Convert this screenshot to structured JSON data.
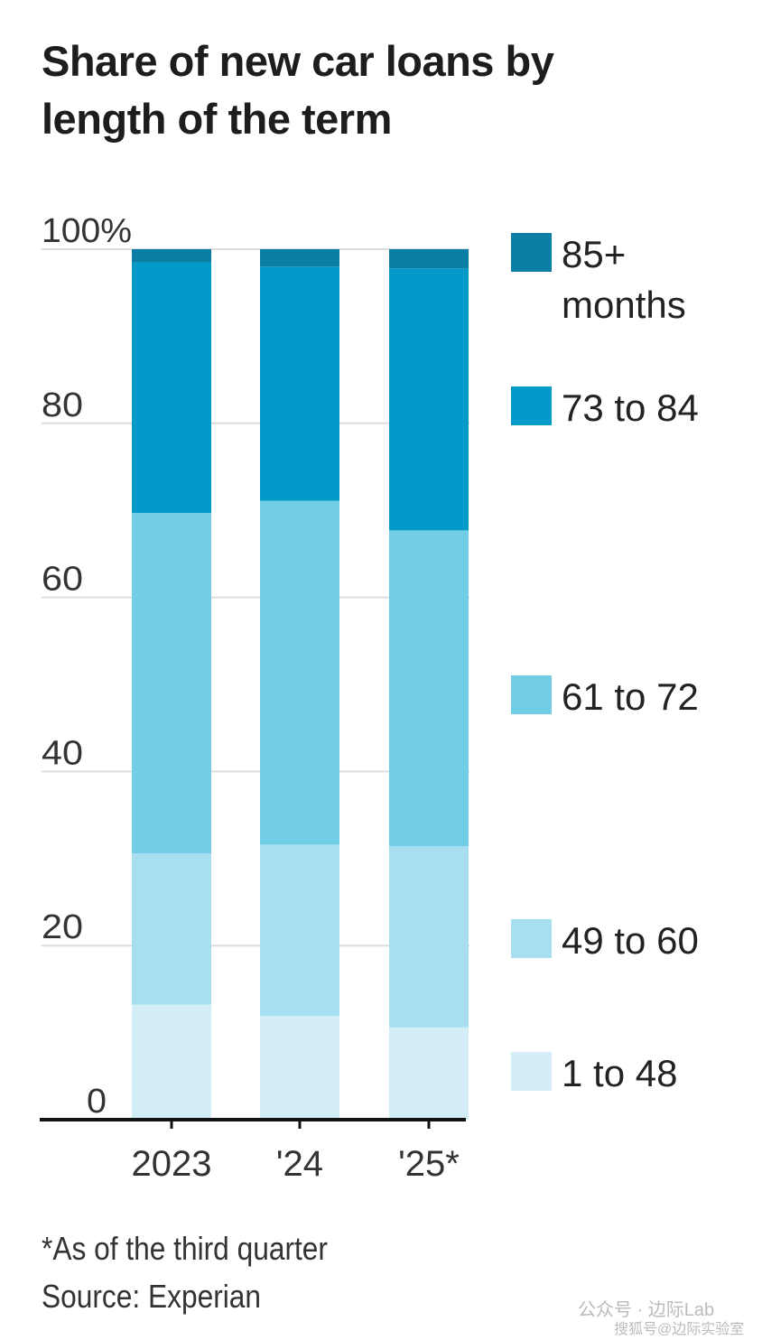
{
  "chart_data": {
    "type": "bar",
    "stacked": true,
    "title": "Share of new car loans by length of the term",
    "xlabel": "",
    "ylabel": "",
    "ylim": [
      0,
      100
    ],
    "yticks": [
      "0",
      "20",
      "40",
      "60",
      "80",
      "100%"
    ],
    "ytick_values": [
      0,
      20,
      40,
      60,
      80,
      100
    ],
    "grid": true,
    "legend_placement": "right",
    "categories": [
      "2023",
      "'24",
      "'25*"
    ],
    "series": [
      {
        "name": "1 to 48",
        "color": "#d4eef7",
        "values": [
          13.2,
          11.9,
          10.6
        ]
      },
      {
        "name": "49 to 60",
        "color": "#a8dff0",
        "values": [
          17.4,
          19.7,
          20.8
        ]
      },
      {
        "name": "61 to 72",
        "color": "#72cde6",
        "values": [
          39.1,
          39.5,
          36.3
        ]
      },
      {
        "name": "73 to 84",
        "color": "#0399c8",
        "values": [
          28.8,
          26.9,
          30.1
        ]
      },
      {
        "name": "85+ months",
        "color": "#0a7ea4",
        "values": [
          1.5,
          2.0,
          2.2
        ]
      }
    ],
    "footnote": "*As of the third quarter",
    "source": "Source: Experian"
  },
  "watermark": [
    "公众号 · 边际Lab",
    "搜狐号@边际实验室"
  ]
}
